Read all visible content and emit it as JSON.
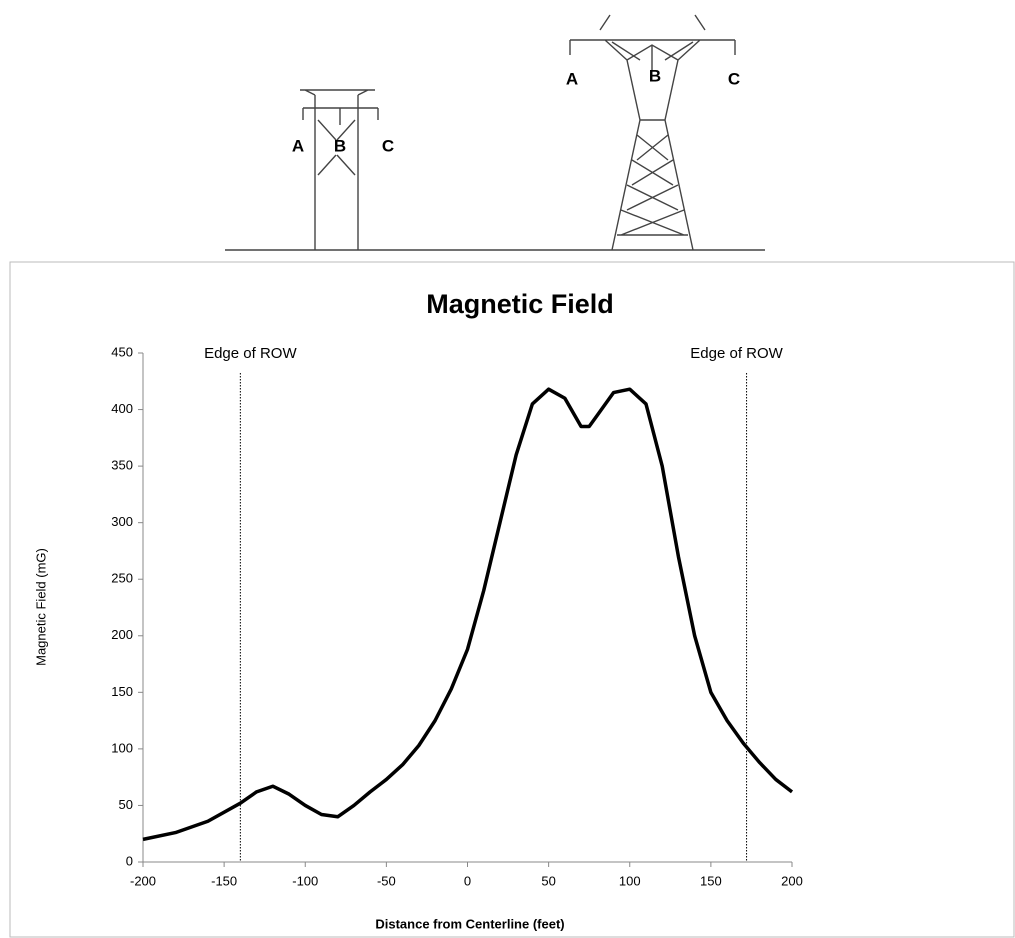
{
  "diagram": {
    "left_tower": {
      "labels": [
        "A",
        "B",
        "C"
      ]
    },
    "right_tower": {
      "labels": [
        "A",
        "B",
        "C"
      ]
    }
  },
  "chart_data": {
    "type": "line",
    "title": "Magnetic Field",
    "x_label": "Distance from Centerline (feet)",
    "y_label": "Magnetic Field (mG)",
    "x": [
      -200,
      -180,
      -160,
      -140,
      -130,
      -120,
      -110,
      -100,
      -90,
      -80,
      -70,
      -60,
      -50,
      -40,
      -30,
      -20,
      -10,
      0,
      10,
      20,
      30,
      40,
      50,
      60,
      70,
      75,
      80,
      90,
      100,
      110,
      120,
      130,
      140,
      150,
      160,
      170,
      180,
      190,
      200
    ],
    "series": [
      {
        "name": "Magnetic Field",
        "color": "#000000",
        "values": [
          20,
          26,
          36,
          52,
          62,
          67,
          60,
          50,
          42,
          40,
          50,
          62,
          73,
          86,
          103,
          125,
          153,
          188,
          240,
          300,
          360,
          405,
          418,
          410,
          385,
          385,
          395,
          415,
          418,
          405,
          350,
          270,
          200,
          150,
          125,
          105,
          88,
          73,
          62
        ]
      }
    ],
    "annotations": [
      {
        "text": "Edge of ROW",
        "x": -140
      },
      {
        "text": "Edge of ROW",
        "x": 172
      }
    ],
    "xlim": [
      -200,
      200
    ],
    "xticks": [
      -200,
      -150,
      -100,
      -50,
      0,
      50,
      100,
      150,
      200
    ],
    "ylim": [
      0,
      450
    ],
    "yticks": [
      0,
      50,
      100,
      150,
      200,
      250,
      300,
      350,
      400,
      450
    ],
    "grid": false
  }
}
